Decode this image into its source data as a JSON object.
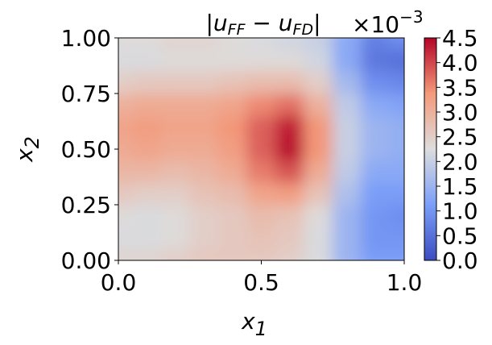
{
  "chart_data": {
    "type": "contour",
    "title": [
      "|u",
      "FF",
      " − u",
      "FD",
      "|"
    ],
    "xlabel": [
      "x",
      "1"
    ],
    "ylabel": [
      "x",
      "2"
    ],
    "colormap": "coolwarm",
    "colorbar": {
      "offset_label": [
        "×10",
        "−3"
      ],
      "clim": [
        0,
        4.5
      ],
      "ticks": [
        {
          "value": 0,
          "label": "0.0"
        },
        0.5,
        {
          "value": 1,
          "label": "1.0"
        },
        1.5,
        {
          "value": 2,
          "label": "2.0"
        },
        2.5,
        {
          "value": 3,
          "label": "3.0"
        },
        3.5,
        {
          "value": 4,
          "label": "4.0"
        },
        4.5
      ]
    },
    "xlim": [
      0,
      1
    ],
    "ylim": [
      0,
      1
    ],
    "xticks": [
      {
        "value": 0,
        "label": "0.0"
      },
      0.5,
      {
        "value": 1,
        "label": "1.0"
      }
    ],
    "yticks": [
      {
        "value": 0,
        "label": "0.00"
      },
      0.25,
      {
        "value": 0.5,
        "label": "0.50"
      },
      0.75,
      {
        "value": 1,
        "label": "1.00"
      }
    ],
    "x": [
      0,
      0.1,
      0.2,
      0.3,
      0.4,
      0.5,
      0.6,
      0.7,
      0.8,
      0.9,
      1
    ],
    "y": [
      0,
      0.1,
      0.2,
      0.3,
      0.4,
      0.5,
      0.6,
      0.7,
      0.8,
      0.9,
      1
    ],
    "z": [
      [
        2.4,
        2.4,
        2.5,
        2.6,
        2.6,
        2.6,
        2.5,
        2.2,
        1.5,
        1.1,
        1.1
      ],
      [
        2.2,
        2.2,
        2.3,
        2.5,
        2.6,
        2.7,
        2.6,
        2.2,
        1.5,
        1.0,
        1.0
      ],
      [
        2.3,
        2.2,
        2.3,
        2.5,
        2.6,
        2.8,
        2.7,
        2.3,
        1.5,
        1.0,
        0.9
      ],
      [
        2.6,
        2.5,
        2.5,
        2.7,
        2.8,
        3.2,
        3.3,
        2.7,
        1.7,
        1.1,
        1.1
      ],
      [
        2.9,
        2.9,
        2.8,
        2.9,
        3.1,
        3.6,
        3.9,
        3.1,
        1.9,
        1.3,
        1.3
      ],
      [
        3.1,
        3.2,
        3.1,
        3.1,
        3.3,
        3.8,
        4.4,
        3.4,
        2.0,
        1.5,
        1.4
      ],
      [
        3.2,
        3.3,
        3.2,
        3.2,
        3.4,
        3.8,
        4.3,
        3.4,
        2.0,
        1.5,
        1.4
      ],
      [
        3.0,
        3.1,
        3.1,
        3.1,
        3.2,
        3.5,
        3.7,
        3.0,
        1.9,
        1.3,
        1.2
      ],
      [
        2.5,
        2.6,
        2.6,
        2.6,
        2.7,
        2.8,
        2.8,
        2.5,
        1.6,
        0.9,
        0.8
      ],
      [
        2.2,
        2.2,
        2.3,
        2.3,
        2.3,
        2.3,
        2.3,
        2.1,
        1.3,
        0.6,
        0.5
      ],
      [
        2.3,
        2.3,
        2.4,
        2.4,
        2.3,
        2.2,
        2.1,
        2.0,
        1.3,
        0.7,
        0.9
      ]
    ]
  }
}
